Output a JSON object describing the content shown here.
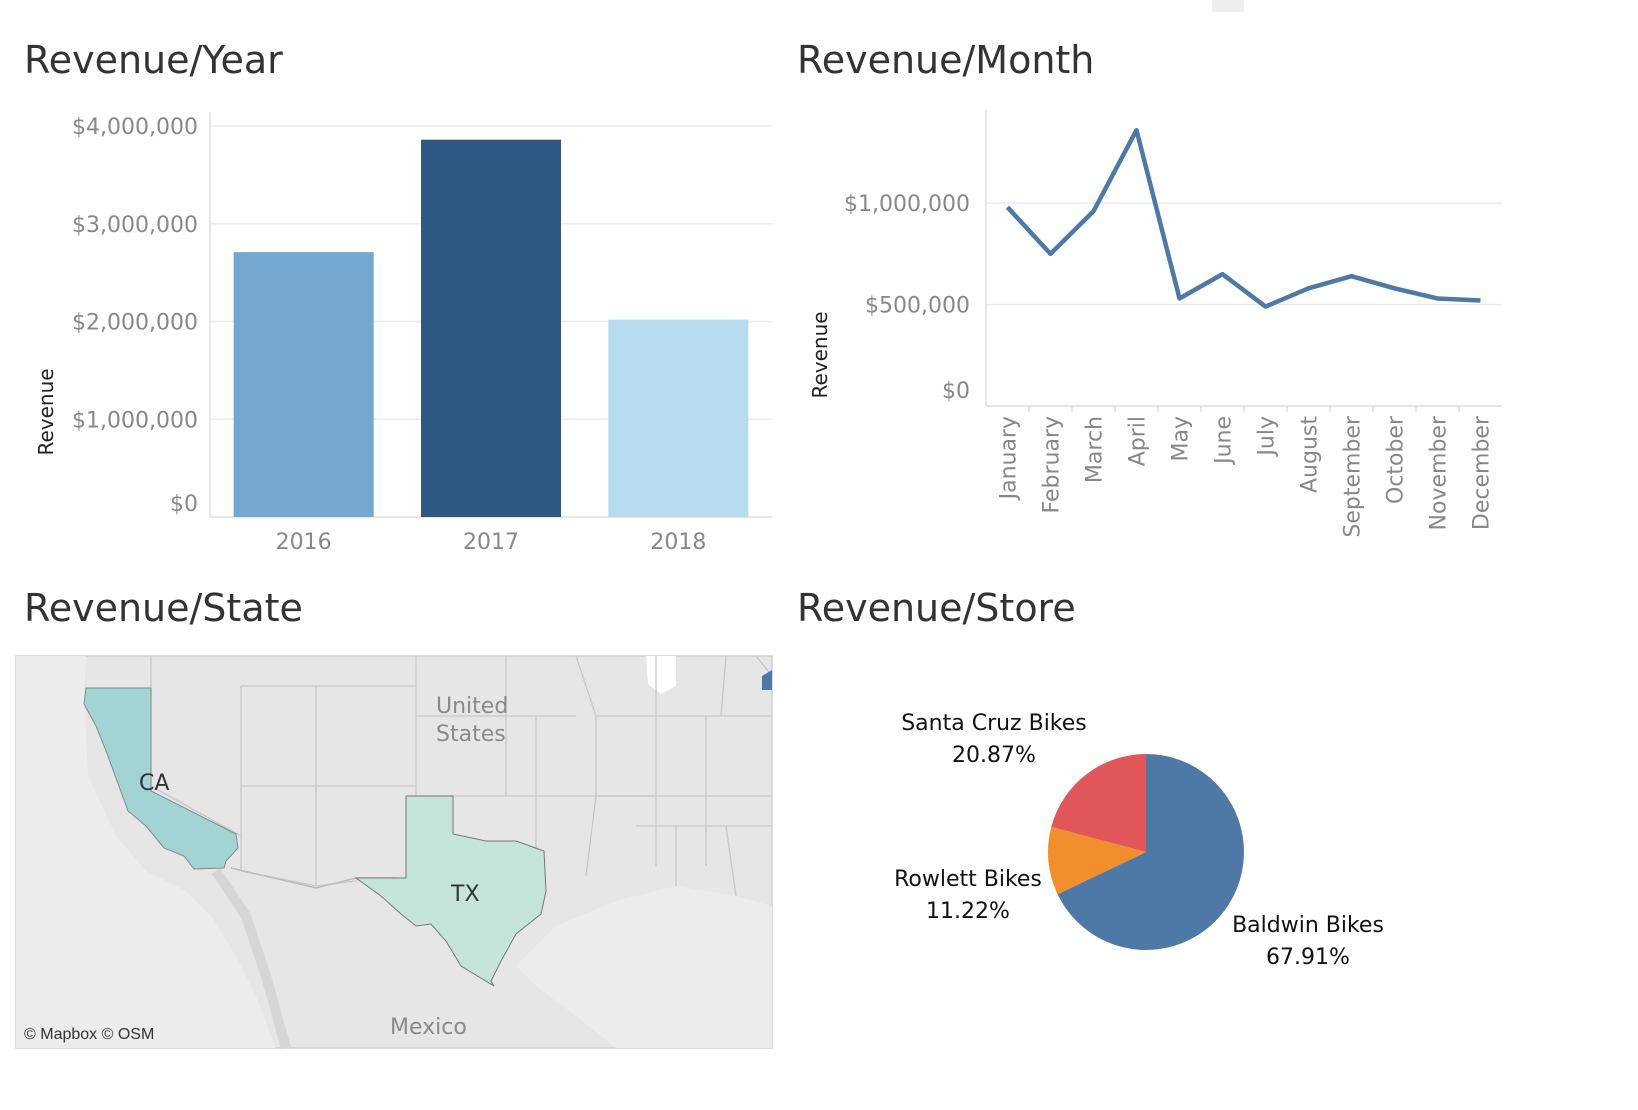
{
  "titles": {
    "year": "Revenue/Year",
    "month": "Revenue/Month",
    "state": "Revenue/State",
    "store": "Revenue/Store"
  },
  "map": {
    "country_us_1": "United",
    "country_us_2": "States",
    "country_mx": "Mexico",
    "credit": "© Mapbox © OSM",
    "states": [
      {
        "label": "CA",
        "color": "#a2d4d4"
      },
      {
        "label": "TX",
        "color": "#c5e5da"
      }
    ]
  },
  "colors": {
    "bar_2016": "#76a8cf",
    "bar_2017": "#2c5882",
    "bar_2018": "#b7dcef",
    "line": "#4e79a7",
    "pie_baldwin": "#4e79a7",
    "pie_rowlett": "#f28e2b",
    "pie_santa_cruz": "#e15759"
  },
  "chart_data": [
    {
      "type": "bar",
      "title": "Revenue/Year",
      "ylabel": "Revenue",
      "categories": [
        "2016",
        "2017",
        "2018"
      ],
      "values": [
        2710000,
        3860000,
        2020000
      ],
      "ylim": [
        0,
        4000000
      ],
      "yticks": [
        0,
        1000000,
        2000000,
        3000000,
        4000000
      ],
      "ytick_labels": [
        "$0",
        "$1,000,000",
        "$2,000,000",
        "$3,000,000",
        "$4,000,000"
      ],
      "grid": true
    },
    {
      "type": "line",
      "title": "Revenue/Month",
      "ylabel": "Revenue",
      "categories": [
        "January",
        "February",
        "March",
        "April",
        "May",
        "June",
        "July",
        "August",
        "September",
        "October",
        "November",
        "December"
      ],
      "values": [
        980000,
        750000,
        960000,
        1360000,
        530000,
        650000,
        490000,
        580000,
        640000,
        580000,
        530000,
        520000
      ],
      "ylim": [
        0,
        1400000
      ],
      "yticks": [
        0,
        500000,
        1000000
      ],
      "ytick_labels": [
        "$0",
        "$500,000",
        "$1,000,000"
      ],
      "grid": true
    },
    {
      "type": "pie",
      "title": "Revenue/Store",
      "slices": [
        {
          "name": "Baldwin Bikes",
          "pct": 67.91,
          "pct_label": "67.91%"
        },
        {
          "name": "Rowlett Bikes",
          "pct": 11.22,
          "pct_label": "11.22%"
        },
        {
          "name": "Santa Cruz Bikes",
          "pct": 20.87,
          "pct_label": "20.87%"
        }
      ]
    }
  ]
}
